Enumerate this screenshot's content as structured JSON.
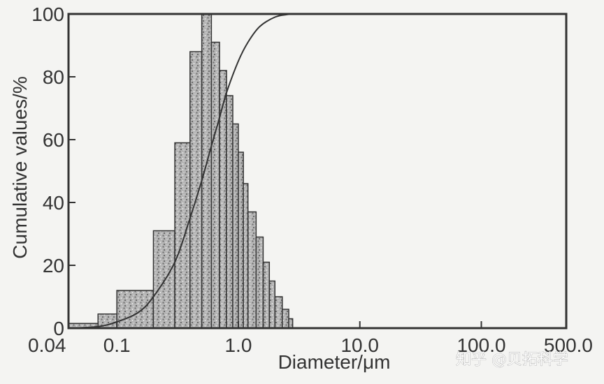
{
  "chart_data": {
    "type": "bar",
    "xlabel": "Diameter/μm",
    "ylabel": "Cumulative values/%",
    "x_scale": "log",
    "xlim": [
      0.04,
      500.0
    ],
    "ylim": [
      0,
      100
    ],
    "x_ticks": [
      "0.04",
      "0.1",
      "1.0",
      "10.0",
      "100.0",
      "500.0"
    ],
    "x_tick_values": [
      0.04,
      0.1,
      1.0,
      10.0,
      100.0,
      500.0
    ],
    "y_ticks": [
      "0",
      "20",
      "40",
      "60",
      "80",
      "100"
    ],
    "y_tick_values": [
      0,
      20,
      40,
      60,
      80,
      100
    ],
    "bars": [
      {
        "x0": 0.04,
        "x1": 0.07,
        "value": 1.5
      },
      {
        "x0": 0.07,
        "x1": 0.1,
        "value": 4.5
      },
      {
        "x0": 0.1,
        "x1": 0.2,
        "value": 12
      },
      {
        "x0": 0.2,
        "x1": 0.3,
        "value": 31
      },
      {
        "x0": 0.3,
        "x1": 0.4,
        "value": 59
      },
      {
        "x0": 0.4,
        "x1": 0.5,
        "value": 88
      },
      {
        "x0": 0.5,
        "x1": 0.6,
        "value": 100
      },
      {
        "x0": 0.6,
        "x1": 0.7,
        "value": 91
      },
      {
        "x0": 0.7,
        "x1": 0.8,
        "value": 82
      },
      {
        "x0": 0.8,
        "x1": 0.9,
        "value": 74
      },
      {
        "x0": 0.9,
        "x1": 1.0,
        "value": 65
      },
      {
        "x0": 1.0,
        "x1": 1.1,
        "value": 56
      },
      {
        "x0": 1.1,
        "x1": 1.2,
        "value": 46
      },
      {
        "x0": 1.2,
        "x1": 1.4,
        "value": 37
      },
      {
        "x0": 1.4,
        "x1": 1.6,
        "value": 29
      },
      {
        "x0": 1.6,
        "x1": 1.8,
        "value": 21
      },
      {
        "x0": 1.8,
        "x1": 2.0,
        "value": 15
      },
      {
        "x0": 2.0,
        "x1": 2.3,
        "value": 10
      },
      {
        "x0": 2.3,
        "x1": 2.6,
        "value": 6
      },
      {
        "x0": 2.6,
        "x1": 2.8,
        "value": 3
      }
    ],
    "cumulative": {
      "x": [
        0.04,
        0.07,
        0.1,
        0.15,
        0.2,
        0.3,
        0.4,
        0.5,
        0.6,
        0.7,
        0.8,
        1.0,
        1.2,
        1.5,
        2.0,
        2.5,
        3.0,
        5.0,
        500.0
      ],
      "y": [
        0,
        0.5,
        2,
        5,
        10,
        21,
        35,
        47,
        58,
        67,
        75,
        85,
        91,
        96,
        99,
        99.8,
        100,
        100,
        100
      ]
    },
    "grid": false
  },
  "watermark": "知乎 @贝拓科学",
  "colors": {
    "bar_fill": "#a8a8a8",
    "bar_stroke": "#333333",
    "line": "#333333",
    "frame": "#333333",
    "background": "#f4f4f2"
  }
}
